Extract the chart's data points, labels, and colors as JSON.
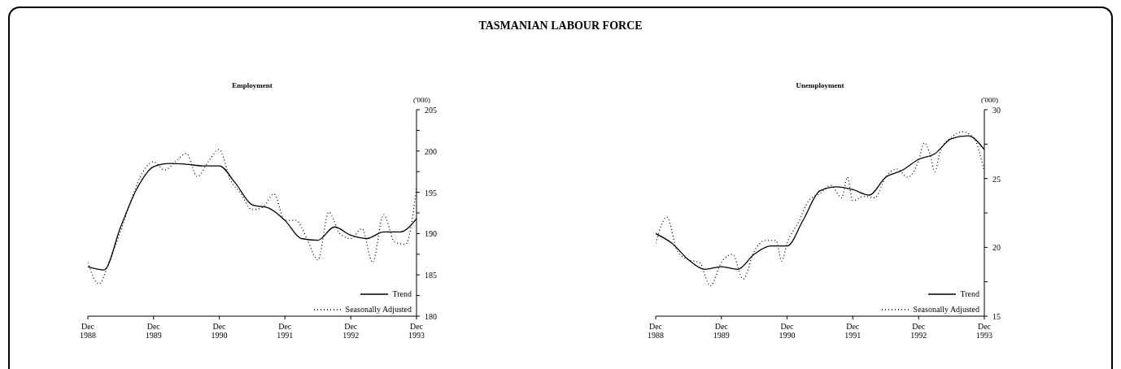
{
  "chart_data": [
    {
      "type": "line",
      "title": "Employment",
      "ylabel": "('000)",
      "annotations": [
        "TASMANIAN LABOUR FORCE"
      ],
      "legend": "bottom right",
      "marker": "none",
      "xlim": [
        "1988-12",
        "1993-12"
      ],
      "xticks": [
        {
          "value": "1988-12",
          "label": "Dec 1988"
        },
        {
          "value": "1989-12",
          "label": "Dec 1989"
        },
        {
          "value": "1990-12",
          "label": "Dec 1990"
        },
        {
          "value": "1991-12",
          "label": "Dec 1991"
        },
        {
          "value": "1992-12",
          "label": "Dec 1992"
        },
        {
          "value": "1993-12",
          "label": "Dec 1993"
        }
      ],
      "ylim": [
        180,
        205
      ],
      "yticks": [
        180,
        {
          "value": 182.5,
          "label": null
        },
        185,
        {
          "value": 187.5,
          "label": null
        },
        190,
        {
          "value": 192.5,
          "label": null
        },
        195,
        {
          "value": 197.5,
          "label": null
        },
        200,
        {
          "value": 202.5,
          "label": null
        },
        205
      ],
      "series": [
        {
          "name": "Trend",
          "color": "#000000",
          "line_style": "solid",
          "x": [
            "1988-12",
            "1989-03",
            "1989-06",
            "1989-09",
            "1989-12",
            "1990-03",
            "1990-06",
            "1990-09",
            "1990-12",
            "1991-03",
            "1991-06",
            "1991-09",
            "1991-12",
            "1992-03",
            "1992-06",
            "1992-09",
            "1992-12",
            "1993-03",
            "1993-06",
            "1993-09",
            "1993-12"
          ],
          "values": [
            186.0,
            185.6,
            190.8,
            195.5,
            198.1,
            198.5,
            198.4,
            198.2,
            198.2,
            196.1,
            193.5,
            193.1,
            191.6,
            189.4,
            189.2,
            190.8,
            189.8,
            189.4,
            190.2,
            190.2,
            191.8
          ]
        },
        {
          "name": "Seasonally Adjusted",
          "color": "#000000",
          "line_style": "dotted",
          "x": [
            "1988-12",
            "1989-02",
            "1989-04",
            "1989-06",
            "1989-08",
            "1989-10",
            "1989-12",
            "1990-02",
            "1990-04",
            "1990-06",
            "1990-08",
            "1990-10",
            "1990-12",
            "1991-02",
            "1991-04",
            "1991-06",
            "1991-08",
            "1991-10",
            "1991-12",
            "1992-02",
            "1992-04",
            "1992-06",
            "1992-08",
            "1992-10",
            "1992-12",
            "1993-02",
            "1993-04",
            "1993-06",
            "1993-08",
            "1993-10",
            "1993-12"
          ],
          "values": [
            186.5,
            183.9,
            186.8,
            190.3,
            194.2,
            197.4,
            198.7,
            197.7,
            198.7,
            199.7,
            196.9,
            198.7,
            200.2,
            196.5,
            194.8,
            192.9,
            193.2,
            194.8,
            191.6,
            191.6,
            189.4,
            186.8,
            192.6,
            190.0,
            189.4,
            190.6,
            186.5,
            192.3,
            189.0,
            188.7,
            195.5
          ]
        }
      ]
    },
    {
      "type": "line",
      "title": "Unemployment",
      "ylabel": "('000)",
      "legend": "bottom right",
      "marker": "none",
      "xlim": [
        "1988-12",
        "1993-12"
      ],
      "xticks": [
        {
          "value": "1988-12",
          "label": "Dec 1988"
        },
        {
          "value": "1989-12",
          "label": "Dec 1989"
        },
        {
          "value": "1990-12",
          "label": "Dec 1990"
        },
        {
          "value": "1991-12",
          "label": "Dec 1991"
        },
        {
          "value": "1992-12",
          "label": "Dec 1992"
        },
        {
          "value": "1993-12",
          "label": "Dec 1993"
        }
      ],
      "ylim": [
        15,
        30
      ],
      "yticks": [
        15,
        {
          "value": 17.5,
          "label": null
        },
        20,
        {
          "value": 22.5,
          "label": null
        },
        25,
        {
          "value": 27.5,
          "label": null
        },
        30
      ],
      "series": [
        {
          "name": "Trend",
          "color": "#000000",
          "line_style": "solid",
          "x": [
            "1988-12",
            "1989-03",
            "1989-06",
            "1989-09",
            "1989-12",
            "1990-03",
            "1990-06",
            "1990-09",
            "1990-12",
            "1991-03",
            "1991-06",
            "1991-09",
            "1991-12",
            "1992-03",
            "1992-06",
            "1992-09",
            "1992-12",
            "1993-03",
            "1993-06",
            "1993-09",
            "1993-12"
          ],
          "values": [
            21.0,
            20.3,
            19.1,
            18.4,
            18.6,
            18.4,
            19.5,
            20.1,
            20.1,
            22.0,
            24.1,
            24.4,
            24.2,
            23.8,
            25.1,
            25.6,
            26.4,
            26.8,
            27.9,
            28.1,
            27.1
          ]
        },
        {
          "name": "Seasonally Adjusted",
          "color": "#000000",
          "line_style": "dotted",
          "x": [
            "1988-12",
            "1989-02",
            "1989-04",
            "1989-06",
            "1989-08",
            "1989-10",
            "1989-12",
            "1990-02",
            "1990-04",
            "1990-06",
            "1990-08",
            "1990-10",
            "1990-11",
            "1990-12",
            "1991-02",
            "1991-04",
            "1991-06",
            "1991-08",
            "1991-10",
            "1991-11",
            "1991-12",
            "1992-02",
            "1992-04",
            "1992-06",
            "1992-08",
            "1992-10",
            "1992-12",
            "1993-01",
            "1993-02",
            "1993-03",
            "1993-04",
            "1993-06",
            "1993-08",
            "1993-10",
            "1993-12"
          ],
          "values": [
            20.3,
            22.2,
            19.7,
            19.1,
            18.9,
            17.2,
            18.9,
            19.5,
            17.7,
            19.7,
            20.5,
            20.5,
            19.0,
            20.3,
            21.8,
            23.4,
            23.9,
            24.5,
            23.6,
            25.1,
            23.4,
            23.7,
            23.6,
            25.1,
            25.7,
            25.1,
            26.3,
            27.6,
            26.8,
            25.5,
            27.0,
            28.0,
            28.4,
            28.0,
            25.5
          ]
        }
      ]
    }
  ]
}
